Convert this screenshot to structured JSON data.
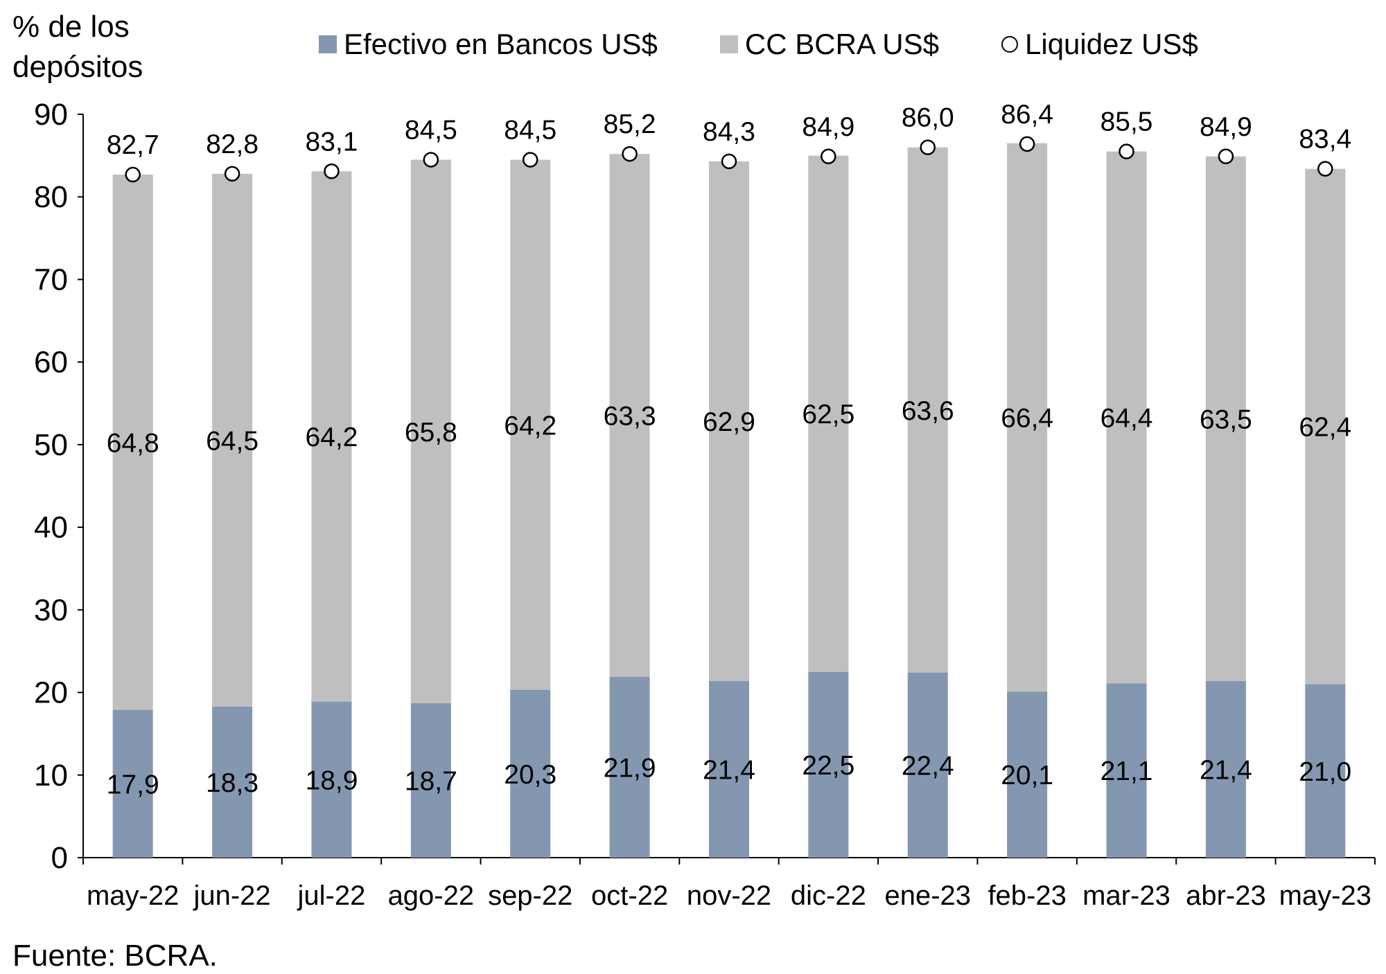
{
  "chart_data": {
    "type": "bar",
    "stacked": true,
    "ylabel": "% de los depósitos",
    "ylim": [
      0,
      90
    ],
    "yticks": [
      0,
      10,
      20,
      30,
      40,
      50,
      60,
      70,
      80,
      90
    ],
    "grid": false,
    "legend_position": "top",
    "categories": [
      "may-22",
      "jun-22",
      "jul-22",
      "ago-22",
      "sep-22",
      "oct-22",
      "nov-22",
      "dic-22",
      "ene-23",
      "feb-23",
      "mar-23",
      "abr-23",
      "may-23"
    ],
    "series": [
      {
        "name": "Efectivo en Bancos US$",
        "kind": "bar",
        "color": "#8497b0",
        "values": [
          17.9,
          18.3,
          18.9,
          18.7,
          20.3,
          21.9,
          21.4,
          22.5,
          22.4,
          20.1,
          21.1,
          21.4,
          21.0
        ],
        "labels": [
          "17,9",
          "18,3",
          "18,9",
          "18,7",
          "20,3",
          "21,9",
          "21,4",
          "22,5",
          "22,4",
          "20,1",
          "21,1",
          "21,4",
          "21,0"
        ]
      },
      {
        "name": "CC BCRA US$",
        "kind": "bar",
        "color": "#bfbfbf",
        "values": [
          64.8,
          64.5,
          64.2,
          65.8,
          64.2,
          63.3,
          62.9,
          62.5,
          63.6,
          66.4,
          64.4,
          63.5,
          62.4
        ],
        "labels": [
          "64,8",
          "64,5",
          "64,2",
          "65,8",
          "64,2",
          "63,3",
          "62,9",
          "62,5",
          "63,6",
          "66,4",
          "64,4",
          "63,5",
          "62,4"
        ]
      },
      {
        "name": "Liquidez US$",
        "kind": "marker",
        "color": "#ffffff",
        "values": [
          82.7,
          82.8,
          83.1,
          84.5,
          84.5,
          85.2,
          84.3,
          84.9,
          86.0,
          86.4,
          85.5,
          84.9,
          83.4
        ],
        "labels": [
          "82,7",
          "82,8",
          "83,1",
          "84,5",
          "84,5",
          "85,2",
          "84,3",
          "84,9",
          "86,0",
          "86,4",
          "85,5",
          "84,9",
          "83,4"
        ]
      }
    ],
    "source": "Fuente: BCRA."
  }
}
